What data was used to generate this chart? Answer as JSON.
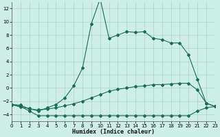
{
  "xlabel": "Humidex (Indice chaleur)",
  "bg_color": "#ceeee8",
  "line_color": "#1a6b58",
  "grid_color": "#aad4cc",
  "xlim": [
    0,
    23
  ],
  "ylim": [
    -5,
    13
  ],
  "xticks": [
    0,
    1,
    2,
    3,
    4,
    5,
    6,
    7,
    8,
    9,
    10,
    11,
    12,
    13,
    14,
    15,
    16,
    17,
    18,
    19,
    20,
    21,
    22,
    23
  ],
  "yticks": [
    -4,
    -2,
    0,
    2,
    4,
    6,
    8,
    10,
    12
  ],
  "line1_x": [
    0,
    1,
    2,
    3,
    4,
    5,
    6,
    7,
    8,
    9,
    10,
    11,
    12,
    13,
    14,
    15,
    16,
    17,
    18,
    19,
    20,
    21,
    22,
    23
  ],
  "line1_y": [
    -2.5,
    -2.9,
    -3.1,
    -3.5,
    -3.0,
    -2.5,
    -1.5,
    0.3,
    3.0,
    9.7,
    13.5,
    7.5,
    8.0,
    8.5,
    8.4,
    8.5,
    7.5,
    7.3,
    6.8,
    6.8,
    5.0,
    1.3,
    -2.3,
    -2.8
  ],
  "line2_x": [
    0,
    1,
    2,
    3,
    4,
    5,
    6,
    7,
    8,
    9,
    10,
    11,
    12,
    13,
    14,
    15,
    16,
    17,
    18,
    19,
    20,
    21,
    22,
    23
  ],
  "line2_y": [
    -2.5,
    -2.8,
    -3.5,
    -4.2,
    -4.2,
    -4.2,
    -4.2,
    -4.2,
    -4.2,
    -4.2,
    -4.2,
    -4.2,
    -4.2,
    -4.2,
    -4.2,
    -4.2,
    -4.2,
    -4.2,
    -4.2,
    -4.2,
    -4.2,
    -3.5,
    -3.0,
    -2.8
  ],
  "line3_x": [
    0,
    1,
    2,
    3,
    4,
    5,
    6,
    7,
    8,
    9,
    10,
    11,
    12,
    13,
    14,
    15,
    16,
    17,
    18,
    19,
    20,
    21,
    22,
    23
  ],
  "line3_y": [
    -2.5,
    -2.6,
    -3.2,
    -3.3,
    -3.2,
    -3.0,
    -2.7,
    -2.4,
    -2.0,
    -1.5,
    -1.0,
    -0.5,
    -0.2,
    0.0,
    0.2,
    0.3,
    0.5,
    0.5,
    0.6,
    0.7,
    0.7,
    -0.3,
    -2.3,
    -2.8
  ]
}
